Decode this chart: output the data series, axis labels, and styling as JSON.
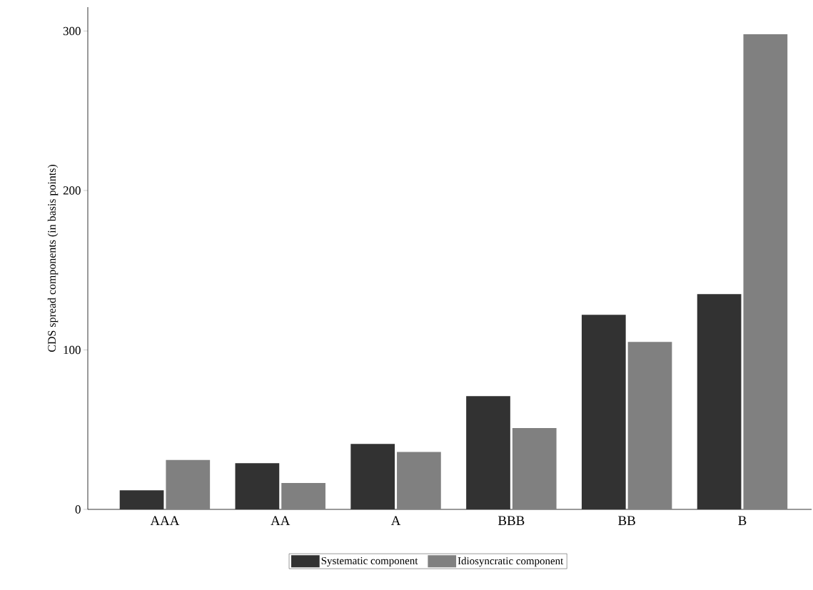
{
  "chart_data": {
    "type": "bar",
    "ylabel": "CDS spread components (in basis points)",
    "categories": [
      "AAA",
      "AA",
      "A",
      "BBB",
      "BB",
      "B"
    ],
    "series": [
      {
        "name": "Systematic component",
        "color": "#323232",
        "values": [
          12,
          29,
          41,
          71,
          122,
          135
        ]
      },
      {
        "name": "Idiosyncratic component",
        "color": "#808080",
        "values": [
          31,
          16.5,
          36,
          51,
          105,
          298
        ]
      }
    ],
    "ylim": [
      0,
      315
    ],
    "yticks": [
      0,
      100,
      200,
      300
    ],
    "grid": false,
    "legend": "bottom"
  }
}
